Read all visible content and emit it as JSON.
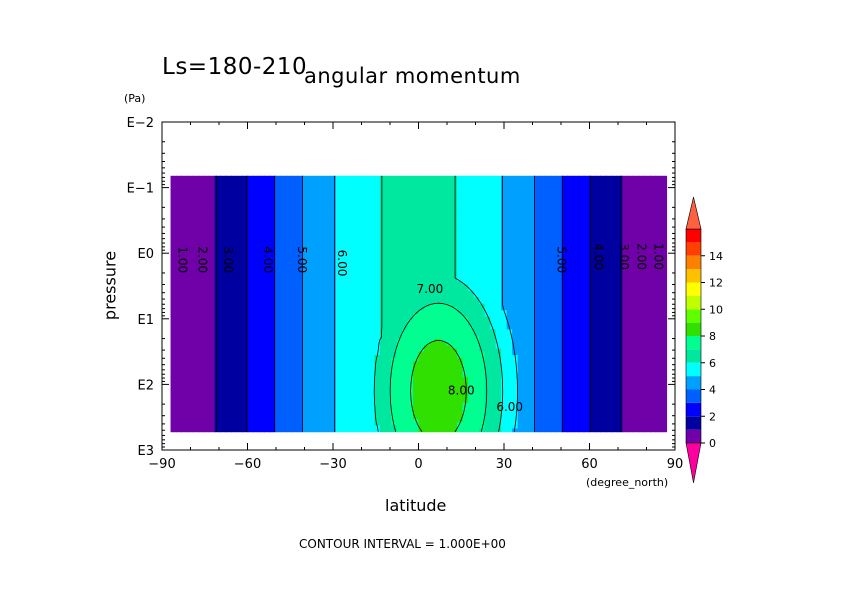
{
  "header": {
    "season_label": "Ls=180-210",
    "title": "angular momentum"
  },
  "axes": {
    "y_unit": "(Pa)",
    "y_label": "pressure",
    "x_unit": "(degree_north)",
    "x_label": "latitude"
  },
  "footer": {
    "contour_interval": "CONTOUR INTERVAL = 1.000E+00"
  },
  "chart_data": {
    "type": "contour",
    "title": "angular momentum",
    "subtitle": "Ls=180-210",
    "xlabel": "latitude",
    "xunit": "(degree_north)",
    "ylabel": "pressure",
    "yunit": "(Pa)",
    "xlim": [
      -90,
      90
    ],
    "ylim_log10": [
      3,
      -2
    ],
    "y_scale": "log",
    "x_ticks": [
      "−90",
      "−60",
      "−30",
      "0",
      "30",
      "60",
      "90"
    ],
    "x_tick_values": [
      -90,
      -60,
      -30,
      0,
      30,
      60,
      90
    ],
    "y_ticks": [
      "E−2",
      "E−1",
      "E0",
      "E1",
      "E2",
      "E3"
    ],
    "y_tick_values": [
      -2,
      -1,
      0,
      1,
      2,
      3
    ],
    "contour_interval": 1.0,
    "contour_labels": [
      {
        "text": "1.00",
        "lat": -83,
        "log_p": 0.1
      },
      {
        "text": "2.00",
        "lat": -76,
        "log_p": 0.1
      },
      {
        "text": "3.00",
        "lat": -67,
        "log_p": 0.1
      },
      {
        "text": "4.00",
        "lat": -53,
        "log_p": 0.1
      },
      {
        "text": "5.00",
        "lat": -41,
        "log_p": 0.1
      },
      {
        "text": "6.00",
        "lat": -27,
        "log_p": 0.15
      },
      {
        "text": "7.00",
        "lat": 4,
        "log_p": 0.55
      },
      {
        "text": "8.00",
        "lat": 15,
        "log_p": 2.1
      },
      {
        "text": "6.00",
        "lat": 32,
        "log_p": 2.35
      },
      {
        "text": "5.00",
        "lat": 50,
        "log_p": 0.1
      },
      {
        "text": "4.00",
        "lat": 63,
        "log_p": 0.05
      },
      {
        "text": "3.00",
        "lat": 72,
        "log_p": 0.05
      },
      {
        "text": "2.00",
        "lat": 78,
        "log_p": 0.05
      },
      {
        "text": "1.00",
        "lat": 84,
        "log_p": 0.05
      }
    ],
    "colorbar": {
      "ticks": [
        "0",
        "2",
        "4",
        "6",
        "8",
        "10",
        "12",
        "14"
      ],
      "levels": [
        0,
        1,
        2,
        3,
        4,
        5,
        6,
        7,
        8,
        9,
        10,
        11,
        12,
        13,
        14,
        15
      ],
      "colors": [
        "#7000a8",
        "#0000a0",
        "#0000ff",
        "#0060ff",
        "#00a0ff",
        "#00ffff",
        "#00e8a0",
        "#00ff90",
        "#30e000",
        "#60ff00",
        "#c0ff00",
        "#ffff00",
        "#ffc000",
        "#ff8000",
        "#ff4000",
        "#ff0000"
      ],
      "under_color": "#ff00a0",
      "over_color": "#ff6040"
    }
  }
}
